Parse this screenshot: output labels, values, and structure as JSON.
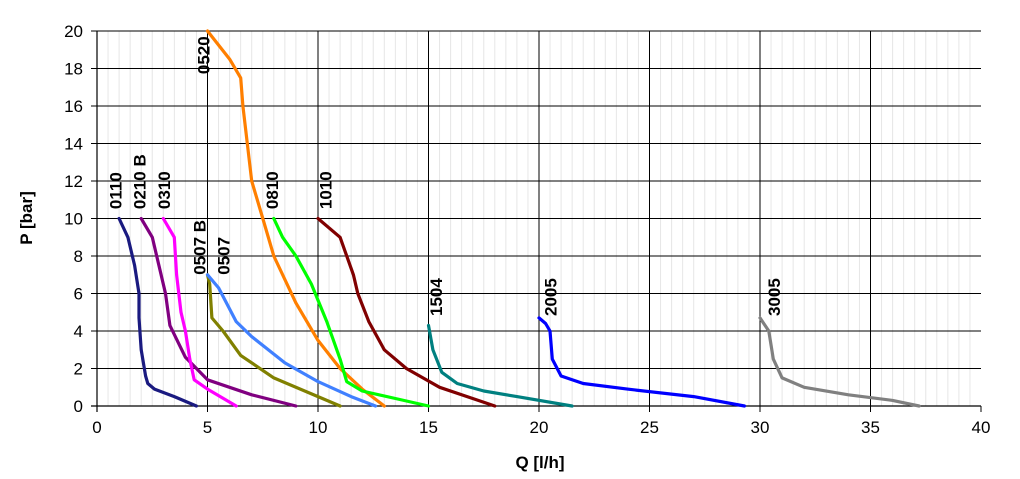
{
  "chart_data": {
    "type": "line",
    "title": "",
    "xlabel": "Q [l/h]",
    "ylabel": "P [bar]",
    "xlim": [
      0,
      40
    ],
    "ylim": [
      0,
      20
    ],
    "xticks": [
      "0",
      "5",
      "10",
      "15",
      "20",
      "25",
      "30",
      "35",
      "40"
    ],
    "yticks": [
      "0",
      "2",
      "4",
      "6",
      "8",
      "10",
      "12",
      "14",
      "16",
      "18",
      "20"
    ],
    "grid": true,
    "legend": "none",
    "series": [
      {
        "name": "0110",
        "color": "#1a1a80",
        "x": [
          1.0,
          1.4,
          1.7,
          1.9,
          1.9,
          2.0,
          2.2,
          2.3,
          2.6,
          3.5,
          4.5
        ],
        "y": [
          10.0,
          9.0,
          7.5,
          6.0,
          4.7,
          3.0,
          1.6,
          1.2,
          0.9,
          0.5,
          0.0
        ]
      },
      {
        "name": "0210 B",
        "color": "#800080",
        "x": [
          2.0,
          2.5,
          2.8,
          3.1,
          3.3,
          4.0,
          5.0,
          7.0,
          9.0
        ],
        "y": [
          10.0,
          9.0,
          7.5,
          6.0,
          4.3,
          2.6,
          1.4,
          0.6,
          0.0
        ]
      },
      {
        "name": "0310",
        "color": "#ff00ff",
        "x": [
          3.0,
          3.5,
          3.6,
          3.8,
          4.0,
          4.2,
          4.4,
          5.0,
          6.3
        ],
        "y": [
          10.0,
          9.0,
          7.0,
          5.0,
          4.0,
          2.5,
          1.4,
          0.9,
          0.0
        ]
      },
      {
        "name": "0507 B",
        "color": "#808000",
        "x": [
          5.0,
          5.1,
          5.2,
          5.7,
          6.5,
          8.0,
          10.0,
          11.0
        ],
        "y": [
          7.0,
          6.5,
          4.7,
          4.0,
          2.7,
          1.5,
          0.5,
          0.0
        ]
      },
      {
        "name": "0507",
        "color": "#4080ff",
        "x": [
          5.0,
          5.5,
          6.3,
          7.0,
          8.5,
          10.0,
          11.5,
          12.6
        ],
        "y": [
          7.0,
          6.3,
          4.5,
          3.7,
          2.3,
          1.3,
          0.5,
          0.0
        ]
      },
      {
        "name": "0520",
        "color": "#ff7f00",
        "x": [
          5.0,
          6.0,
          6.5,
          6.6,
          6.8,
          7.0,
          7.5,
          8.0,
          9.0,
          10.0,
          11.0,
          12.0,
          13.0
        ],
        "y": [
          20.0,
          18.5,
          17.5,
          16.0,
          14.0,
          12.0,
          10.0,
          8.0,
          5.5,
          3.5,
          2.0,
          0.9,
          0.0
        ]
      },
      {
        "name": "0810",
        "color": "#00ff00",
        "x": [
          8.0,
          8.4,
          9.0,
          9.7,
          10.4,
          11.0,
          11.3,
          12.0,
          13.5,
          15.0
        ],
        "y": [
          10.0,
          9.0,
          8.0,
          6.5,
          4.5,
          2.5,
          1.3,
          0.8,
          0.4,
          0.0
        ]
      },
      {
        "name": "1010",
        "color": "#800000",
        "x": [
          10.0,
          11.0,
          11.6,
          11.8,
          12.3,
          13.0,
          14.0,
          15.5,
          17.0,
          18.0
        ],
        "y": [
          10.0,
          9.0,
          7.0,
          6.0,
          4.5,
          3.0,
          2.0,
          1.0,
          0.4,
          0.0
        ]
      },
      {
        "name": "1504",
        "color": "#008080",
        "x": [
          15.0,
          15.2,
          15.6,
          16.3,
          17.5,
          19.0,
          21.5
        ],
        "y": [
          4.3,
          3.0,
          1.8,
          1.2,
          0.8,
          0.5,
          0.0
        ]
      },
      {
        "name": "2005",
        "color": "#0000ff",
        "x": [
          20.0,
          20.3,
          20.5,
          20.6,
          21.0,
          22.0,
          24.0,
          27.0,
          29.3
        ],
        "y": [
          4.7,
          4.4,
          4.0,
          2.5,
          1.6,
          1.2,
          0.9,
          0.5,
          0.0
        ]
      },
      {
        "name": "3005",
        "color": "#808080",
        "x": [
          30.0,
          30.4,
          30.6,
          31.0,
          32.0,
          34.0,
          36.0,
          37.2
        ],
        "y": [
          4.7,
          4.0,
          2.5,
          1.5,
          1.0,
          0.6,
          0.3,
          0.0
        ]
      }
    ],
    "labels": [
      {
        "text": "0110",
        "x": 1.1,
        "y": 10.5
      },
      {
        "text": "0210 B",
        "x": 2.2,
        "y": 10.5
      },
      {
        "text": "0310",
        "x": 3.3,
        "y": 10.5
      },
      {
        "text": "0507 B",
        "x": 4.9,
        "y": 7.0
      },
      {
        "text": "0507",
        "x": 6.0,
        "y": 7.0
      },
      {
        "text": "0520",
        "x": 5.1,
        "y": 17.7
      },
      {
        "text": "0810",
        "x": 8.2,
        "y": 10.5
      },
      {
        "text": "1010",
        "x": 10.6,
        "y": 10.5
      },
      {
        "text": "1504",
        "x": 15.6,
        "y": 4.8
      },
      {
        "text": "2005",
        "x": 20.8,
        "y": 4.8
      },
      {
        "text": "3005",
        "x": 30.9,
        "y": 4.8
      }
    ]
  }
}
